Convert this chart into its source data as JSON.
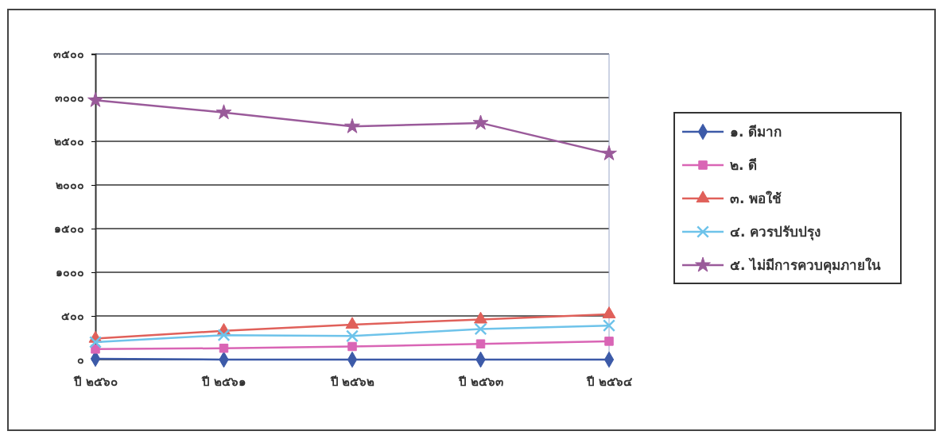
{
  "chart_data": {
    "type": "line",
    "categories": [
      "ปี ๒๕๖๐",
      "ปี ๒๕๖๑",
      "ปี ๒๕๖๒",
      "ปี ๒๕๖๓",
      "ปี ๒๕๖๔"
    ],
    "series": [
      {
        "name": "๑. ดีมาก",
        "color": "#3c5aa8",
        "marker": "diamond",
        "values": [
          10,
          0,
          0,
          0,
          0
        ]
      },
      {
        "name": "๒. ดี",
        "color": "#d965b5",
        "marker": "square",
        "values": [
          120,
          130,
          150,
          180,
          210
        ]
      },
      {
        "name": "๓. พอใช้",
        "color": "#e0605a",
        "marker": "triangle",
        "values": [
          240,
          330,
          400,
          460,
          520
        ]
      },
      {
        "name": "๔. ควรปรับปรุง",
        "color": "#6ec3ea",
        "marker": "cross",
        "values": [
          200,
          280,
          270,
          350,
          390
        ]
      },
      {
        "name": "๕. ไม่มีการควบคุมภายใน",
        "color": "#9a5a9a",
        "marker": "star",
        "values": [
          2970,
          2830,
          2670,
          2710,
          2360
        ]
      }
    ],
    "ylim": [
      0,
      3500
    ],
    "yticks": [
      {
        "value": 0,
        "label": "๐"
      },
      {
        "value": 500,
        "label": "๕๐๐"
      },
      {
        "value": 1000,
        "label": "๑๐๐๐"
      },
      {
        "value": 1500,
        "label": "๑๕๐๐"
      },
      {
        "value": 2000,
        "label": "๒๐๐๐"
      },
      {
        "value": 2500,
        "label": "๒๕๐๐"
      },
      {
        "value": 3000,
        "label": "๓๐๐๐"
      },
      {
        "value": 3500,
        "label": "๓๕๐๐"
      }
    ],
    "grid": "y",
    "legend": "right",
    "line_style": "solid"
  }
}
